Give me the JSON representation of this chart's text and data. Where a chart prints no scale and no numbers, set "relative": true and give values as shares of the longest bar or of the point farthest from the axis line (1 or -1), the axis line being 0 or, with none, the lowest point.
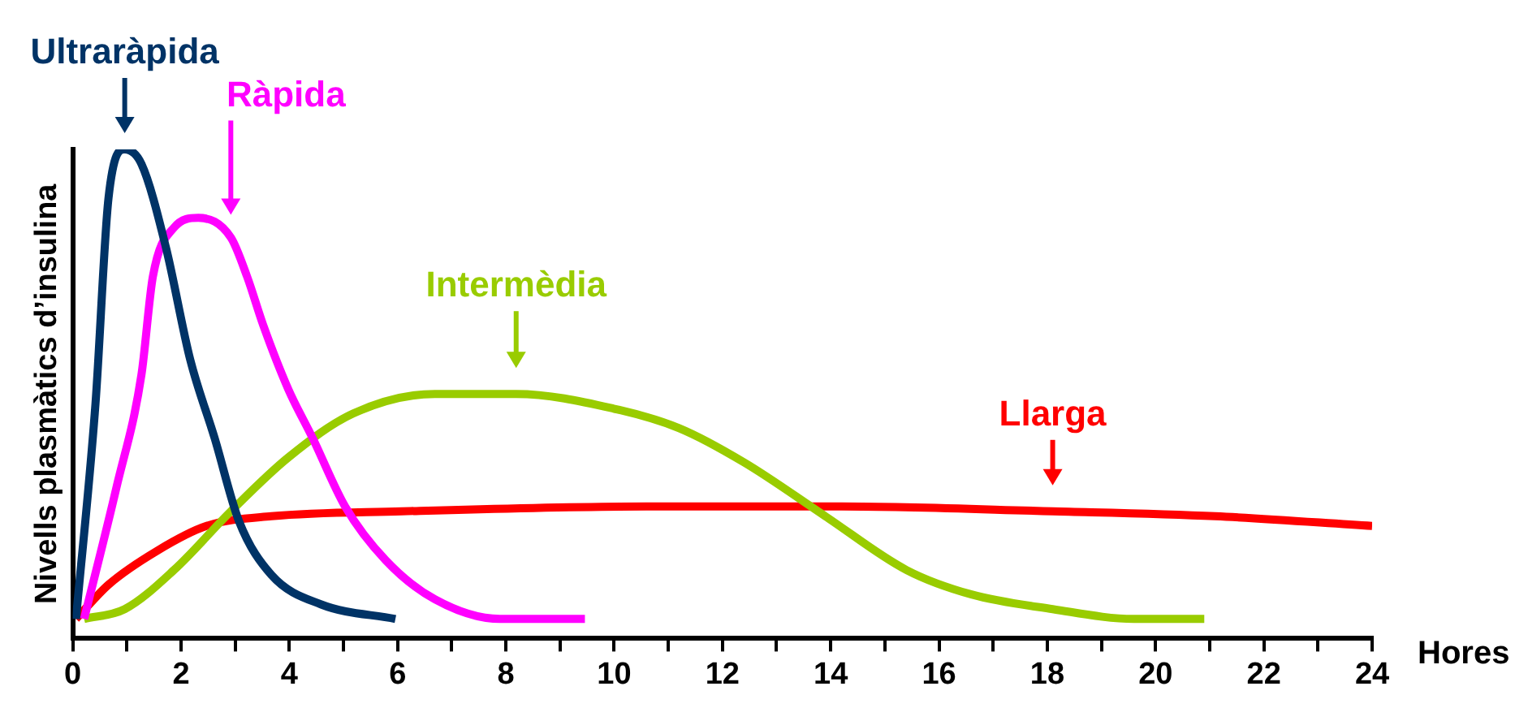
{
  "chart_data": {
    "type": "line",
    "relative": true,
    "xlabel": "Hores",
    "ylabel": "Nivells plasmàtics d’insulina",
    "xlim": [
      0,
      24
    ],
    "xticks": [
      0,
      {
        "value": 1,
        "label": null
      },
      2,
      {
        "value": 3,
        "label": null
      },
      4,
      {
        "value": 5,
        "label": null
      },
      6,
      {
        "value": 7,
        "label": null
      },
      8,
      {
        "value": 9,
        "label": null
      },
      10,
      {
        "value": 11,
        "label": null
      },
      12,
      {
        "value": 13,
        "label": null
      },
      14,
      {
        "value": 15,
        "label": null
      },
      16,
      {
        "value": 17,
        "label": null
      },
      18,
      {
        "value": 19,
        "label": null
      },
      20,
      {
        "value": 21,
        "label": null
      },
      22,
      {
        "value": 23,
        "label": null
      },
      24
    ],
    "grid": false,
    "legend": false,
    "marker": "none",
    "line_style": "solid",
    "series": [
      {
        "name": "Ultraràpida",
        "color": "#003366",
        "x": [
          0.06,
          0.42,
          0.66,
          0.96,
          1.27,
          1.72,
          2.17,
          2.62,
          3.07,
          3.67,
          4.58,
          5.96
        ],
        "values": [
          0.04,
          0.48,
          0.9,
          1.0,
          0.97,
          0.8,
          0.57,
          0.41,
          0.24,
          0.13,
          0.07,
          0.04
        ]
      },
      {
        "name": "Ràpida",
        "color": "#ff00ff",
        "x": [
          0.21,
          0.81,
          1.27,
          1.48,
          1.87,
          2.32,
          2.92,
          3.22,
          3.52,
          3.98,
          4.43,
          5.03,
          5.78,
          6.69,
          7.89,
          9.46
        ],
        "values": [
          0.04,
          0.31,
          0.54,
          0.74,
          0.84,
          0.86,
          0.82,
          0.74,
          0.64,
          0.51,
          0.41,
          0.27,
          0.16,
          0.08,
          0.04,
          0.04
        ]
      },
      {
        "name": "Intermèdia",
        "color": "#99cc00",
        "x": [
          0.21,
          0.96,
          1.87,
          2.92,
          3.98,
          5.18,
          6.69,
          8.19,
          9.99,
          11.2,
          12.4,
          13.9,
          15.4,
          16.6,
          18.1,
          19.6,
          20.9
        ],
        "values": [
          0.04,
          0.06,
          0.14,
          0.26,
          0.37,
          0.46,
          0.5,
          0.5,
          0.47,
          0.43,
          0.36,
          0.25,
          0.14,
          0.09,
          0.06,
          0.04,
          0.04
        ]
      },
      {
        "name": "Llarga",
        "color": "#ff0000",
        "x": [
          0.06,
          0.66,
          1.57,
          2.47,
          3.67,
          6.08,
          10.6,
          14.2,
          18.1,
          21.1,
          24
        ],
        "values": [
          0.04,
          0.11,
          0.18,
          0.23,
          0.25,
          0.26,
          0.27,
          0.27,
          0.26,
          0.25,
          0.23
        ]
      }
    ]
  }
}
